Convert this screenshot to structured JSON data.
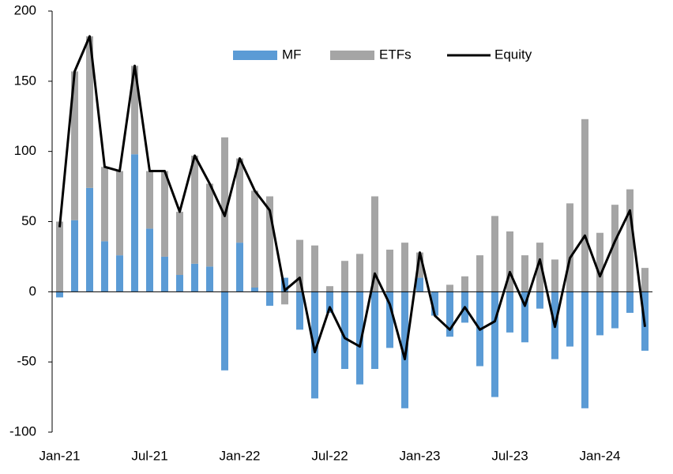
{
  "chart_data": {
    "type": "bar",
    "stacked": true,
    "categories": [
      "Jan-21",
      null,
      null,
      null,
      null,
      null,
      "Jul-21",
      null,
      null,
      null,
      null,
      null,
      "Jan-22",
      null,
      null,
      null,
      null,
      null,
      "Jul-22",
      null,
      null,
      null,
      null,
      null,
      "Jan-23",
      null,
      null,
      null,
      null,
      null,
      "Jul-23",
      null,
      null,
      null,
      null,
      null,
      "Jan-24",
      null,
      null,
      null
    ],
    "series": [
      {
        "name": "MF",
        "type": "bar",
        "color": "#5b9bd5",
        "values": [
          -4,
          51,
          74,
          36,
          26,
          98,
          45,
          25,
          12,
          20,
          18,
          -56,
          35,
          3,
          -10,
          10,
          -27,
          -76,
          -15,
          -55,
          -66,
          -55,
          -40,
          -83,
          10,
          -17,
          -32,
          -22,
          -53,
          -75,
          -29,
          -36,
          -12,
          -48,
          -39,
          -83,
          -31,
          -26,
          -15,
          -42
        ]
      },
      {
        "name": "ETFs",
        "type": "bar",
        "color": "#a5a5a5",
        "values": [
          50,
          106,
          108,
          53,
          60,
          63,
          41,
          61,
          45,
          77,
          59,
          110,
          60,
          69,
          68,
          -9,
          37,
          33,
          4,
          22,
          27,
          68,
          30,
          35,
          18,
          0,
          5,
          11,
          26,
          54,
          43,
          26,
          35,
          23,
          63,
          123,
          42,
          62,
          73,
          17
        ]
      },
      {
        "name": "Equity",
        "type": "line",
        "color": "#000000",
        "values": [
          46,
          157,
          182,
          89,
          86,
          161,
          86,
          86,
          57,
          97,
          77,
          54,
          95,
          72,
          58,
          1,
          10,
          -43,
          -11,
          -33,
          -39,
          13,
          -9,
          -48,
          28,
          -17,
          -27,
          -11,
          -27,
          -21,
          14,
          -10,
          23,
          -25,
          24,
          40,
          11,
          36,
          58,
          -25
        ]
      }
    ],
    "ylim": [
      -100,
      200
    ],
    "yticks": [
      -100,
      -50,
      0,
      50,
      100,
      150,
      200
    ],
    "legend": "top",
    "grid": false
  }
}
